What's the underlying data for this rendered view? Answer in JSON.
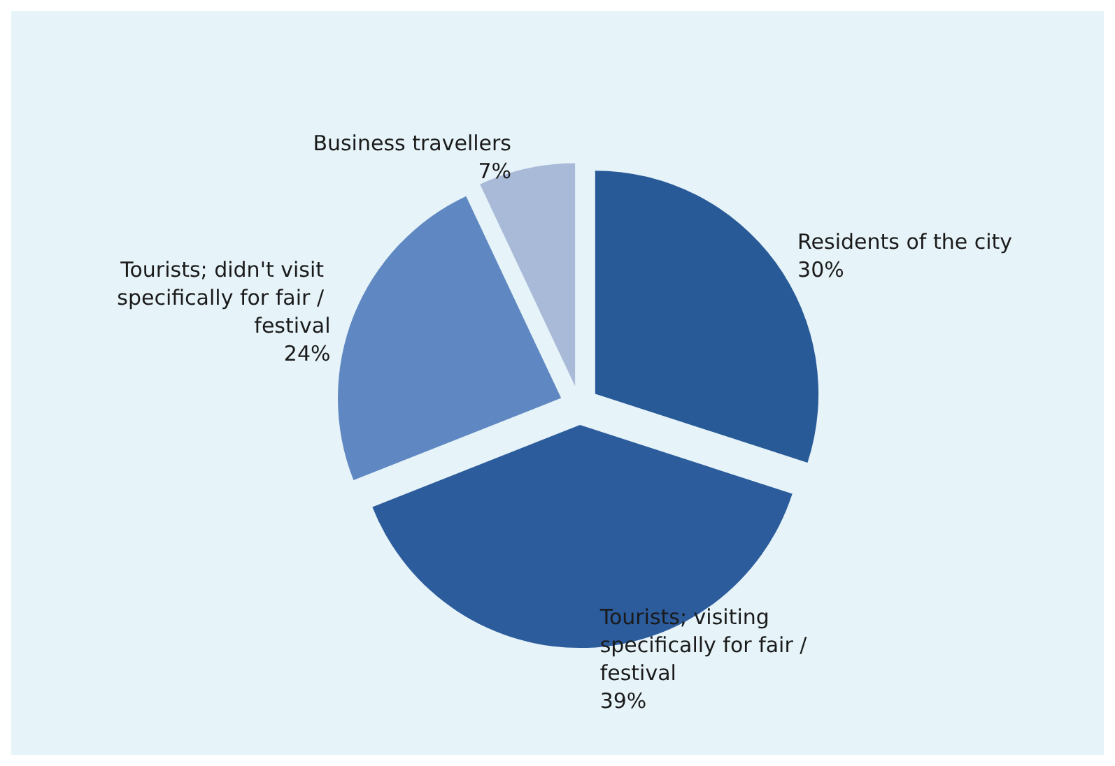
{
  "chart_data": {
    "type": "pie",
    "categories": [
      "Residents of the city",
      "Tourists; visiting specifically for fair / festival",
      "Tourists; didn't visit specifically for fair / festival",
      "Business travellers"
    ],
    "values": [
      30,
      39,
      24,
      7
    ],
    "value_labels": [
      "30%",
      "39%",
      "24%",
      "7%"
    ],
    "colors": [
      "#285a98",
      "#2c5c9c",
      "#5f88c2",
      "#a8bad8"
    ],
    "legend": false
  }
}
